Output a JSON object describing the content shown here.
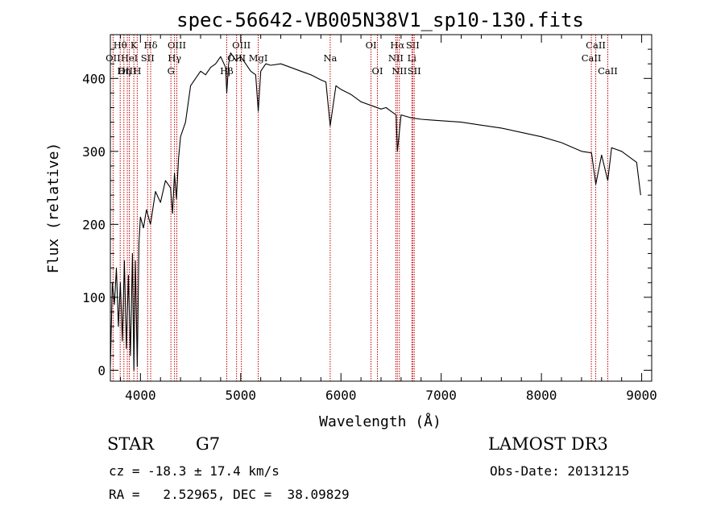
{
  "chart_data": {
    "type": "line",
    "title": "spec-56642-VB005N38V1_sp10-130.fits",
    "xlabel": "Wavelength (Å)",
    "ylabel": "Flux (relative)",
    "xlim": [
      3700,
      9100
    ],
    "ylim": [
      -15,
      460
    ],
    "xticks": [
      4000,
      5000,
      6000,
      7000,
      8000,
      9000
    ],
    "yticks": [
      0,
      100,
      200,
      300,
      400
    ],
    "series": [
      {
        "name": "flux",
        "x": [
          3700,
          3720,
          3740,
          3760,
          3780,
          3800,
          3820,
          3840,
          3860,
          3880,
          3900,
          3920,
          3935,
          3950,
          3968,
          3985,
          4000,
          4030,
          4060,
          4100,
          4150,
          4200,
          4250,
          4300,
          4320,
          4340,
          4360,
          4380,
          4400,
          4450,
          4500,
          4550,
          4600,
          4650,
          4700,
          4750,
          4800,
          4850,
          4861,
          4880,
          4900,
          4950,
          5000,
          5050,
          5100,
          5150,
          5175,
          5200,
          5250,
          5300,
          5400,
          5500,
          5600,
          5700,
          5800,
          5850,
          5893,
          5950,
          6000,
          6100,
          6200,
          6300,
          6400,
          6450,
          6500,
          6550,
          6563,
          6600,
          6650,
          6700,
          6800,
          6900,
          7000,
          7200,
          7400,
          7600,
          7800,
          8000,
          8200,
          8400,
          8500,
          8542,
          8600,
          8662,
          8700,
          8800,
          8900,
          8950,
          8990
        ],
        "y": [
          5,
          120,
          90,
          140,
          60,
          120,
          40,
          150,
          30,
          130,
          20,
          160,
          0,
          150,
          5,
          175,
          210,
          195,
          220,
          200,
          245,
          230,
          260,
          250,
          215,
          270,
          235,
          290,
          320,
          340,
          390,
          400,
          410,
          405,
          415,
          420,
          430,
          415,
          380,
          420,
          435,
          425,
          430,
          420,
          410,
          405,
          355,
          410,
          420,
          418,
          420,
          415,
          410,
          405,
          398,
          395,
          335,
          390,
          385,
          378,
          368,
          363,
          358,
          360,
          355,
          350,
          300,
          350,
          348,
          346,
          344,
          343,
          342,
          340,
          336,
          332,
          326,
          320,
          312,
          300,
          298,
          255,
          295,
          260,
          305,
          300,
          290,
          285,
          240
        ]
      }
    ],
    "lines": [
      {
        "name": "Hθ",
        "x": 3798,
        "row": 0
      },
      {
        "name": "OII",
        "x": 3727,
        "row": 1
      },
      {
        "name": "OIII",
        "x": 3869,
        "row": 2
      },
      {
        "name": "Hη",
        "x": 3835,
        "row": 2
      },
      {
        "name": "K",
        "x": 3934,
        "row": 0
      },
      {
        "name": "HeI",
        "x": 3889,
        "row": 1
      },
      {
        "name": "H",
        "x": 3968,
        "row": 2
      },
      {
        "name": "SII",
        "x": 4072,
        "row": 1
      },
      {
        "name": "Hδ",
        "x": 4102,
        "row": 0
      },
      {
        "name": "OIII",
        "x": 4363,
        "row": 0
      },
      {
        "name": "Hγ",
        "x": 4340,
        "row": 1
      },
      {
        "name": "G",
        "x": 4304,
        "row": 2
      },
      {
        "name": "OIII",
        "x": 5007,
        "row": 0
      },
      {
        "name": "OIII",
        "x": 4959,
        "row": 1
      },
      {
        "name": "Hβ",
        "x": 4861,
        "row": 2
      },
      {
        "name": "MgI",
        "x": 5175,
        "row": 1
      },
      {
        "name": "Na",
        "x": 5893,
        "row": 1
      },
      {
        "name": "OI",
        "x": 6300,
        "row": 0
      },
      {
        "name": "OI",
        "x": 6364,
        "row": 2
      },
      {
        "name": "Hα",
        "x": 6563,
        "row": 0
      },
      {
        "name": "NII",
        "x": 6548,
        "row": 1
      },
      {
        "name": "NII",
        "x": 6583,
        "row": 2
      },
      {
        "name": "SII",
        "x": 6716,
        "row": 0
      },
      {
        "name": "Li",
        "x": 6708,
        "row": 1
      },
      {
        "name": "SII",
        "x": 6731,
        "row": 2
      },
      {
        "name": "CaII",
        "x": 8542,
        "row": 0
      },
      {
        "name": "CaII",
        "x": 8498,
        "row": 1
      },
      {
        "name": "CaII",
        "x": 8662,
        "row": 2
      }
    ],
    "line_color": "#c00000",
    "spectrum_color": "#000000"
  },
  "info": {
    "object_class": "STAR",
    "subclass": "G7",
    "survey": "LAMOST DR3",
    "redshift": "cz = -18.3 ± 17.4 km/s",
    "obs_date": "Obs-Date: 20131215",
    "coords": "RA =   2.52965, DEC =  38.09829"
  }
}
